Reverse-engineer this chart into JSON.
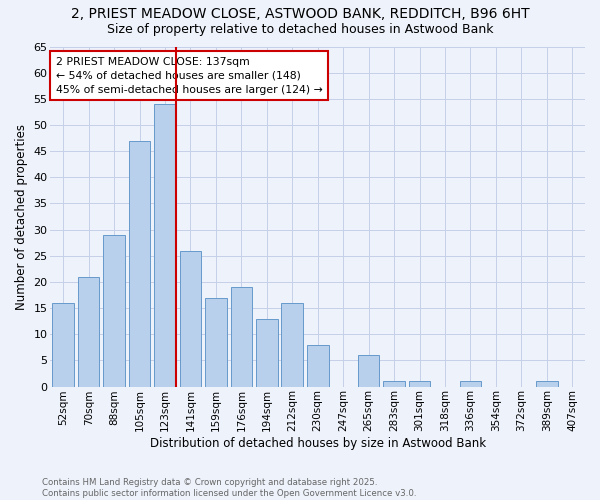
{
  "title1": "2, PRIEST MEADOW CLOSE, ASTWOOD BANK, REDDITCH, B96 6HT",
  "title2": "Size of property relative to detached houses in Astwood Bank",
  "xlabel": "Distribution of detached houses by size in Astwood Bank",
  "ylabel": "Number of detached properties",
  "categories": [
    "52sqm",
    "70sqm",
    "88sqm",
    "105sqm",
    "123sqm",
    "141sqm",
    "159sqm",
    "176sqm",
    "194sqm",
    "212sqm",
    "230sqm",
    "247sqm",
    "265sqm",
    "283sqm",
    "301sqm",
    "318sqm",
    "336sqm",
    "354sqm",
    "372sqm",
    "389sqm",
    "407sqm"
  ],
  "values": [
    16,
    21,
    29,
    47,
    54,
    26,
    17,
    19,
    13,
    16,
    8,
    0,
    6,
    1,
    1,
    0,
    1,
    0,
    0,
    1,
    0
  ],
  "bar_color": "#b8d0eb",
  "bar_edge_color": "#6699cc",
  "background_color": "#eef2fb",
  "grid_color": "#c5cfe8",
  "annotation_text": "2 PRIEST MEADOW CLOSE: 137sqm\n← 54% of detached houses are smaller (148)\n45% of semi-detached houses are larger (124) →",
  "vline_color": "#cc0000",
  "vline_pos": 4.42,
  "ylim": [
    0,
    65
  ],
  "yticks": [
    0,
    5,
    10,
    15,
    20,
    25,
    30,
    35,
    40,
    45,
    50,
    55,
    60,
    65
  ],
  "footer_text": "Contains HM Land Registry data © Crown copyright and database right 2025.\nContains public sector information licensed under the Open Government Licence v3.0.",
  "annotation_box_color": "#ffffff",
  "annotation_box_edge": "#cc0000",
  "title_fontsize": 10,
  "subtitle_fontsize": 9,
  "ylabel_text": "Number of detached properties"
}
